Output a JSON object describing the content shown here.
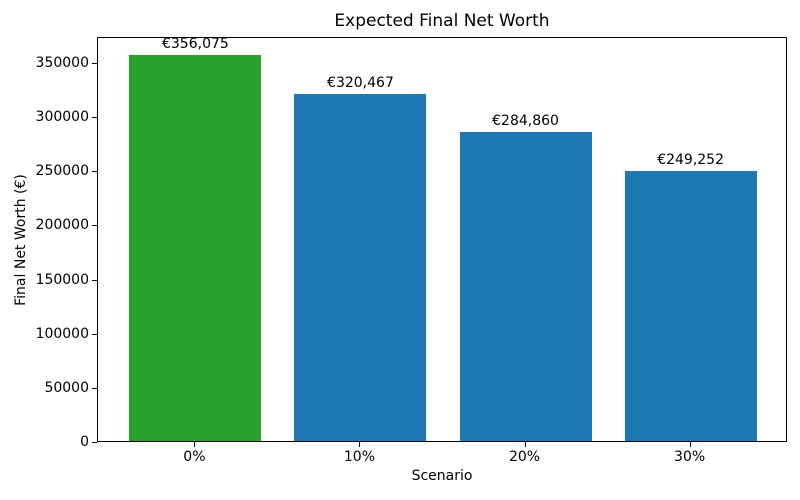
{
  "chart_data": {
    "type": "bar",
    "title": "Expected Final Net Worth",
    "xlabel": "Scenario",
    "ylabel": "Final Net Worth (€)",
    "categories": [
      "0%",
      "10%",
      "20%",
      "30%"
    ],
    "values": [
      356075,
      320467,
      284860,
      249252
    ],
    "bar_labels": [
      "€356,075",
      "€320,467",
      "€284,860",
      "€249,252"
    ],
    "bar_colors": [
      "#2ca02c",
      "#1f77b4",
      "#1f77b4",
      "#1f77b4"
    ],
    "ylim": [
      0,
      373879
    ],
    "yticks": [
      0,
      50000,
      100000,
      150000,
      200000,
      250000,
      300000,
      350000
    ],
    "ytick_labels": [
      "0",
      "50000",
      "100000",
      "150000",
      "200000",
      "250000",
      "300000",
      "350000"
    ],
    "grid": false,
    "legend_position": "none",
    "spine_color": "#000000",
    "text_color": "#000000",
    "background_color": "#ffffff"
  }
}
